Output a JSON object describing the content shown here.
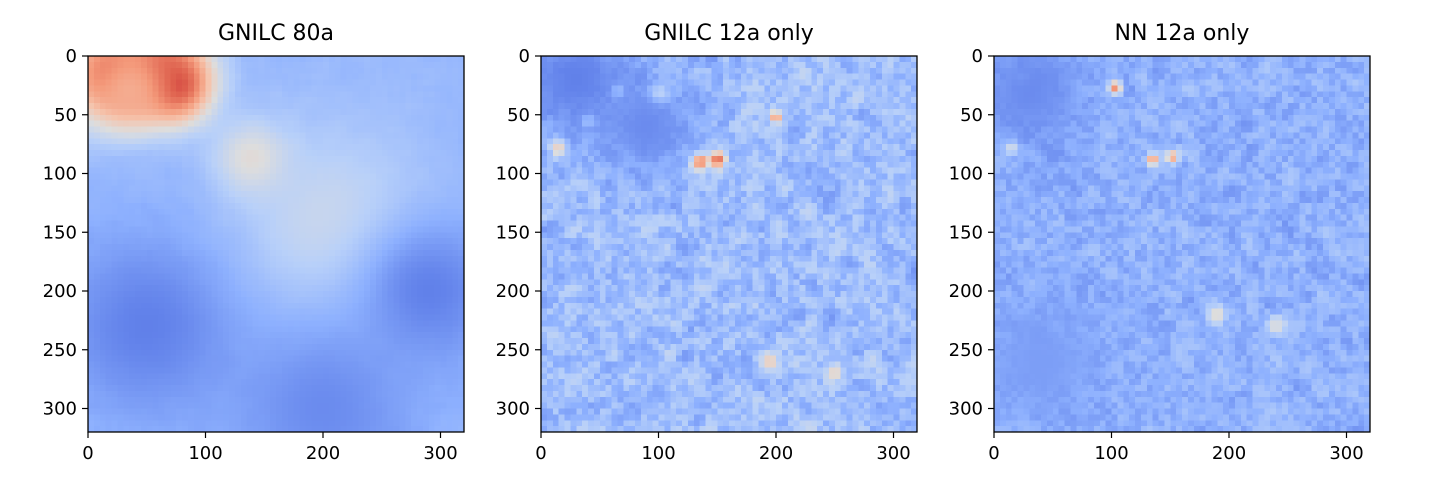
{
  "chart_data": [
    {
      "type": "heatmap",
      "title": "GNILC 80a",
      "xlim": [
        0,
        320
      ],
      "ylim": [
        320,
        0
      ],
      "xticks": [
        0,
        100,
        200,
        300
      ],
      "yticks": [
        0,
        50,
        100,
        150,
        200,
        250,
        300
      ],
      "colormap": "coolwarm",
      "grid": false,
      "texture": "smooth",
      "features": [
        {
          "x": 20,
          "y": 15,
          "r": 30,
          "v": 0.85
        },
        {
          "x": 60,
          "y": 8,
          "r": 25,
          "v": 0.8
        },
        {
          "x": 75,
          "y": 25,
          "r": 22,
          "v": 0.92
        },
        {
          "x": 35,
          "y": 30,
          "r": 20,
          "v": 0.7
        },
        {
          "x": 140,
          "y": 88,
          "r": 22,
          "v": 0.55
        },
        {
          "x": 210,
          "y": 150,
          "r": 60,
          "v": 0.45
        },
        {
          "x": 50,
          "y": 230,
          "r": 55,
          "v": 0.12
        },
        {
          "x": 290,
          "y": 200,
          "r": 45,
          "v": 0.12
        },
        {
          "x": 200,
          "y": 300,
          "r": 55,
          "v": 0.15
        }
      ]
    },
    {
      "type": "heatmap",
      "title": "GNILC 12a only",
      "xlim": [
        0,
        320
      ],
      "ylim": [
        320,
        0
      ],
      "xticks": [
        0,
        100,
        200,
        300
      ],
      "yticks": [
        0,
        50,
        100,
        150,
        200,
        250,
        300
      ],
      "colormap": "coolwarm",
      "grid": false,
      "texture": "fine",
      "features": [
        {
          "x": 135,
          "y": 90,
          "r": 5,
          "v": 1.0
        },
        {
          "x": 150,
          "y": 88,
          "r": 5,
          "v": 0.95
        },
        {
          "x": 100,
          "y": 33,
          "r": 6,
          "v": 0.85
        },
        {
          "x": 65,
          "y": 30,
          "r": 4,
          "v": 0.8
        },
        {
          "x": 15,
          "y": 78,
          "r": 5,
          "v": 0.75
        },
        {
          "x": 200,
          "y": 52,
          "r": 4,
          "v": 0.75
        },
        {
          "x": 40,
          "y": 55,
          "r": 4,
          "v": 0.7
        },
        {
          "x": 195,
          "y": 260,
          "r": 6,
          "v": 0.6
        },
        {
          "x": 250,
          "y": 270,
          "r": 5,
          "v": 0.6
        },
        {
          "x": 30,
          "y": 20,
          "r": 35,
          "v": 0.12
        },
        {
          "x": 90,
          "y": 60,
          "r": 30,
          "v": 0.15
        }
      ]
    },
    {
      "type": "heatmap",
      "title": "NN 12a only",
      "xlim": [
        0,
        320
      ],
      "ylim": [
        320,
        0
      ],
      "xticks": [
        0,
        100,
        200,
        300
      ],
      "yticks": [
        0,
        50,
        100,
        150,
        200,
        250,
        300
      ],
      "colormap": "coolwarm",
      "grid": false,
      "texture": "fine-muted",
      "features": [
        {
          "x": 103,
          "y": 27,
          "r": 4,
          "v": 0.85
        },
        {
          "x": 135,
          "y": 88,
          "r": 4,
          "v": 0.75
        },
        {
          "x": 152,
          "y": 86,
          "r": 4,
          "v": 0.7
        },
        {
          "x": 15,
          "y": 78,
          "r": 4,
          "v": 0.65
        },
        {
          "x": 25,
          "y": 20,
          "r": 4,
          "v": 0.6
        },
        {
          "x": 190,
          "y": 220,
          "r": 6,
          "v": 0.55
        },
        {
          "x": 240,
          "y": 230,
          "r": 6,
          "v": 0.5
        },
        {
          "x": 30,
          "y": 30,
          "r": 35,
          "v": 0.15
        },
        {
          "x": 40,
          "y": 260,
          "r": 40,
          "v": 0.2
        }
      ]
    }
  ]
}
